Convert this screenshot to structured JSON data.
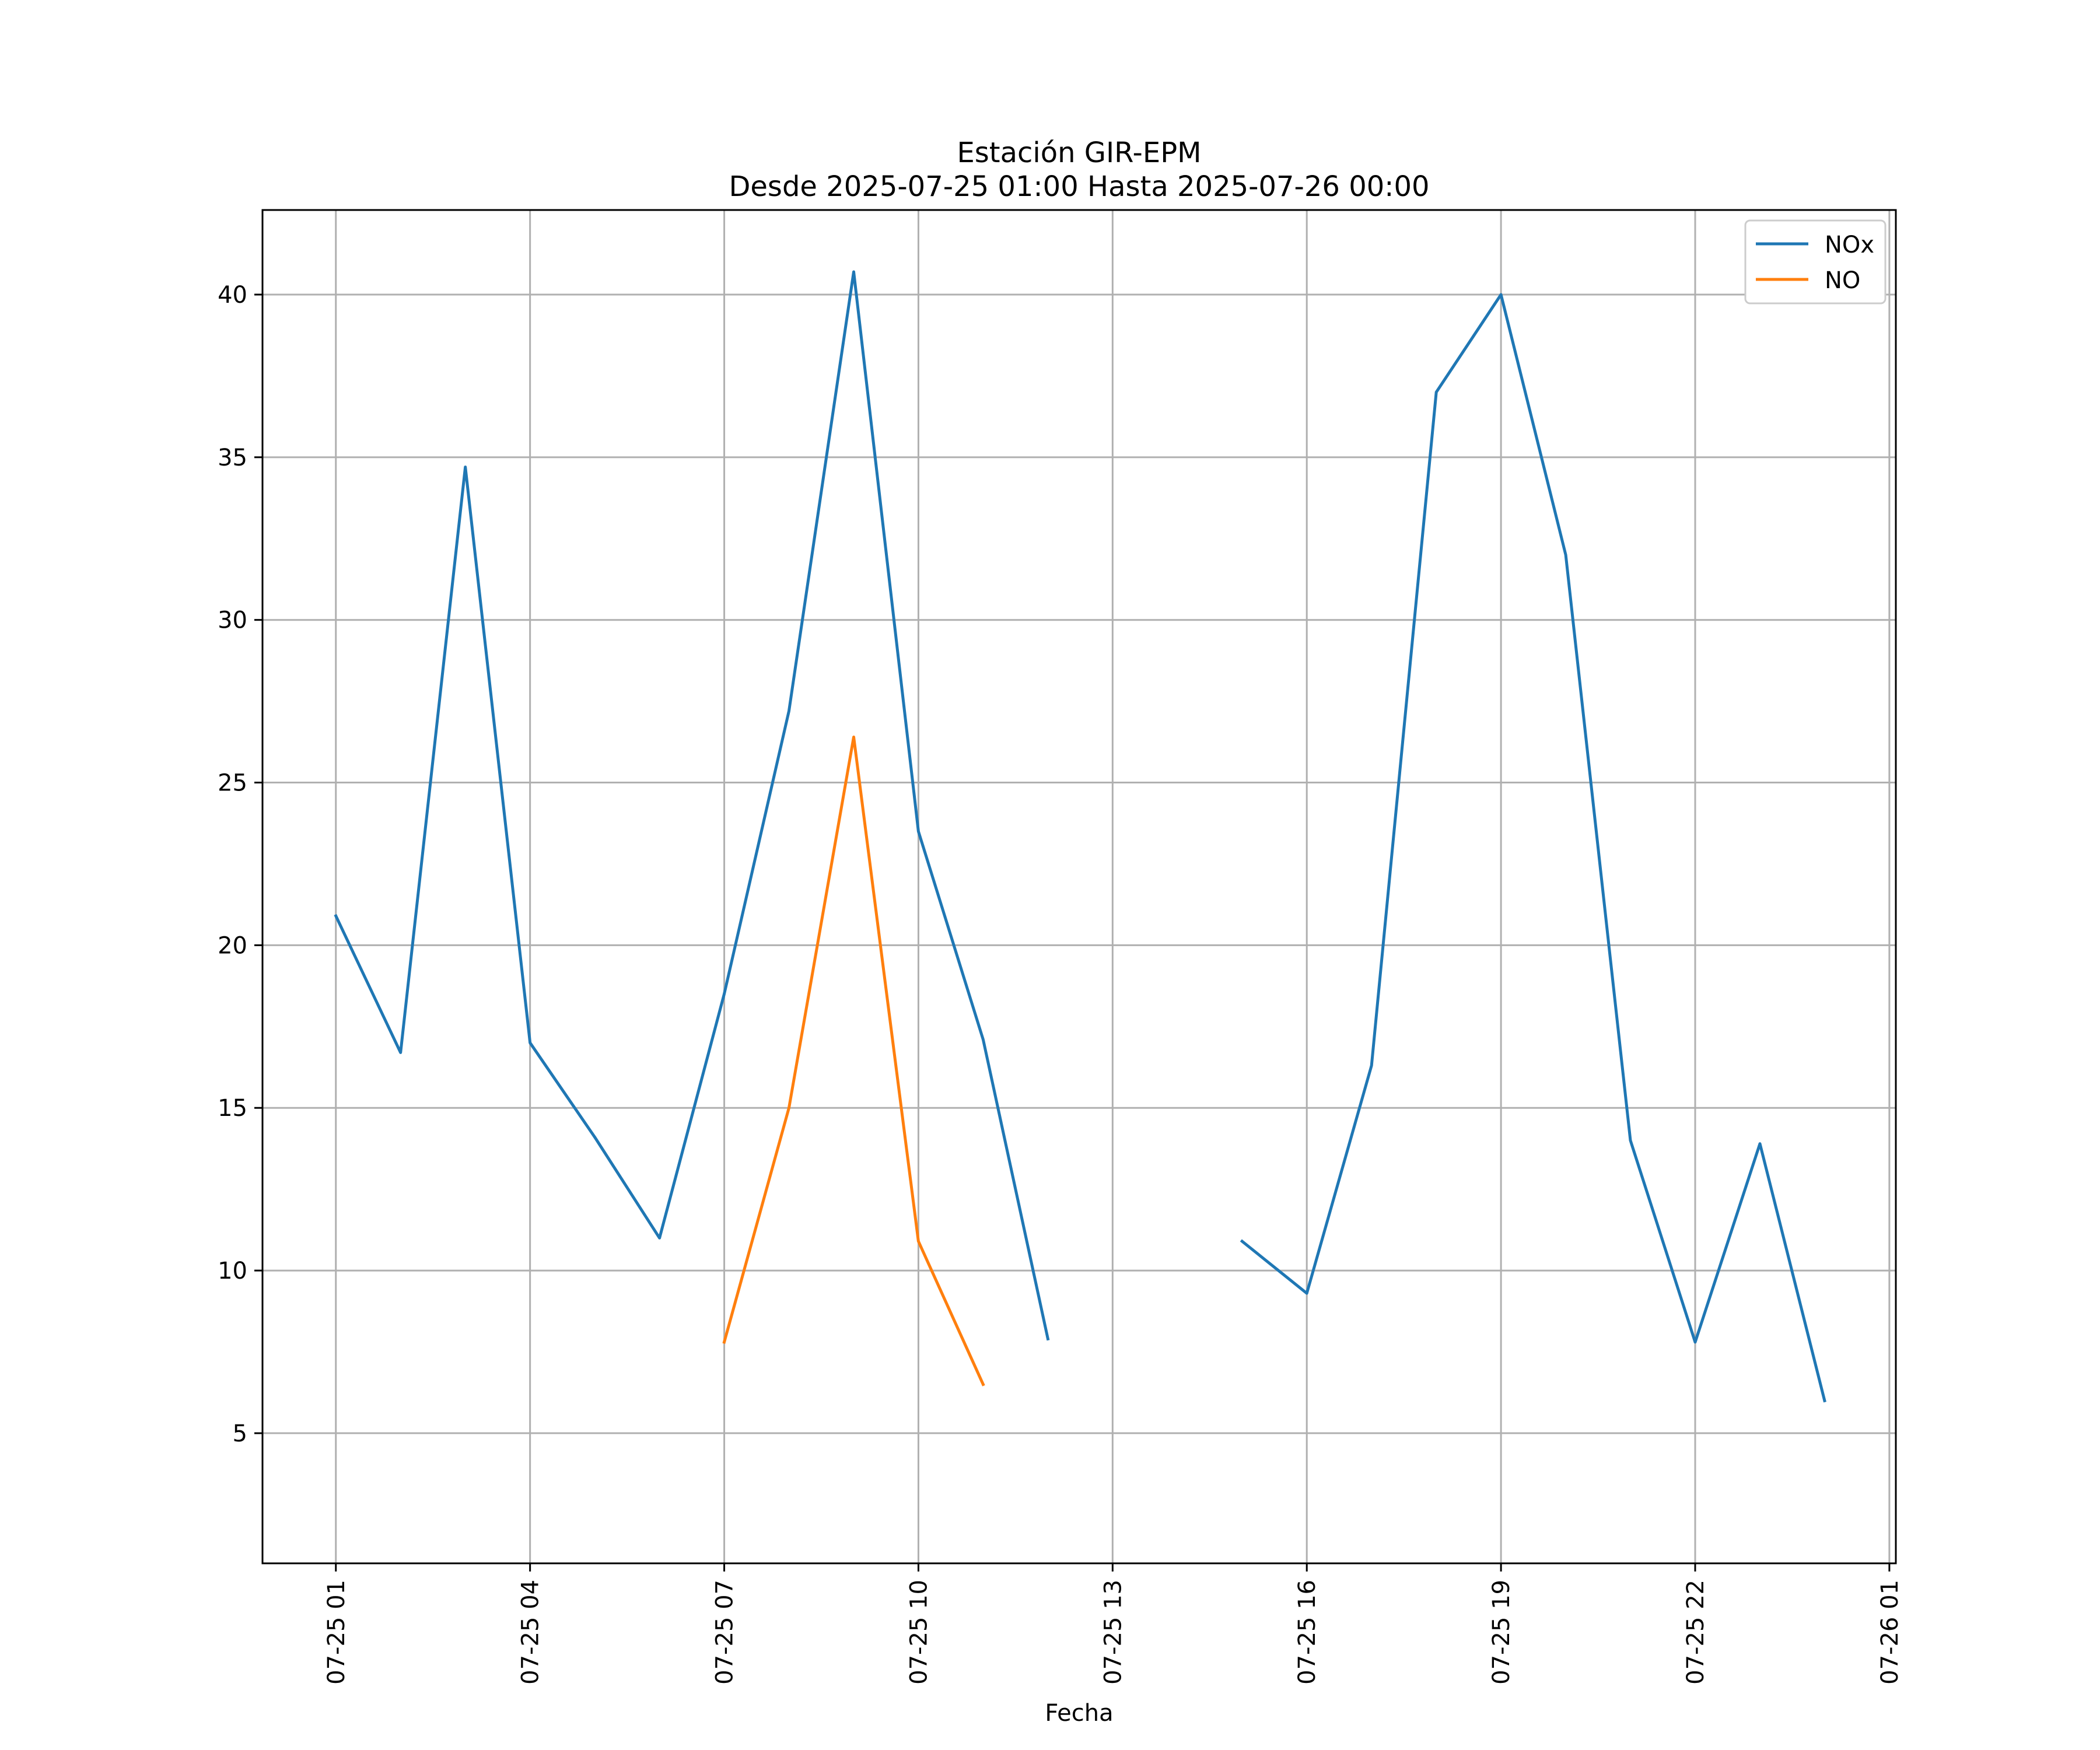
{
  "chart_data": {
    "type": "line",
    "title": "Estación GIR-EPM",
    "subtitle": "Desde 2025-07-25 01:00 Hasta 2025-07-26 00:00",
    "xlabel": "Fecha",
    "ylabel": "",
    "x_ticks": [
      "2025-07-25 01:00",
      "2025-07-25 04:00",
      "2025-07-25 07:00",
      "2025-07-25 10:00",
      "2025-07-25 13:00",
      "2025-07-25 16:00",
      "2025-07-25 19:00",
      "2025-07-25 22:00",
      "2025-07-26 01:00"
    ],
    "x_tick_labels": [
      "07-25 01",
      "07-25 04",
      "07-25 07",
      "07-25 10",
      "07-25 13",
      "07-25 16",
      "07-25 19",
      "07-25 22",
      "07-26 01"
    ],
    "xlim": [
      "2025-07-24 23:52",
      "2025-07-26 01:06"
    ],
    "ylim": [
      1,
      42.6
    ],
    "y_ticks": [
      5,
      10,
      15,
      20,
      25,
      30,
      35,
      40
    ],
    "grid": true,
    "legend_position": "top-right",
    "x": [
      "2025-07-25 01:00",
      "2025-07-25 02:00",
      "2025-07-25 03:00",
      "2025-07-25 04:00",
      "2025-07-25 05:00",
      "2025-07-25 06:00",
      "2025-07-25 07:00",
      "2025-07-25 08:00",
      "2025-07-25 09:00",
      "2025-07-25 10:00",
      "2025-07-25 11:00",
      "2025-07-25 12:00",
      "2025-07-25 13:00",
      "2025-07-25 14:00",
      "2025-07-25 15:00",
      "2025-07-25 16:00",
      "2025-07-25 17:00",
      "2025-07-25 18:00",
      "2025-07-25 19:00",
      "2025-07-25 20:00",
      "2025-07-25 21:00",
      "2025-07-25 22:00",
      "2025-07-25 23:00",
      "2025-07-26 00:00"
    ],
    "series": [
      {
        "name": "NOx",
        "color": "#1f77b4",
        "values": [
          20.9,
          16.7,
          34.7,
          17.0,
          14.1,
          11.0,
          18.5,
          27.2,
          40.7,
          23.5,
          17.1,
          7.9,
          null,
          null,
          10.9,
          9.3,
          16.3,
          37.0,
          40.0,
          32.0,
          14.0,
          7.8,
          13.9,
          6.0
        ]
      },
      {
        "name": "NO",
        "color": "#ff7f0e",
        "values": [
          null,
          null,
          null,
          null,
          null,
          null,
          7.8,
          15.0,
          26.4,
          10.9,
          6.5,
          null,
          null,
          null,
          null,
          null,
          null,
          null,
          null,
          null,
          null,
          null,
          null,
          null
        ]
      }
    ]
  }
}
